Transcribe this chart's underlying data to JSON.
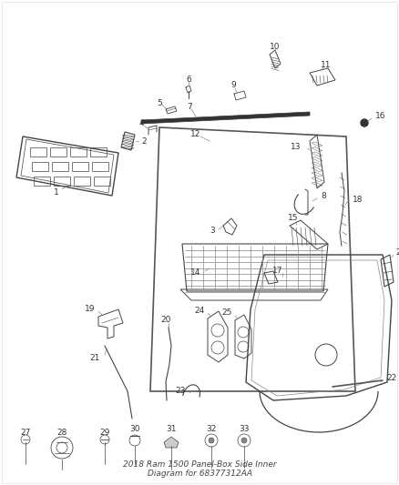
{
  "bg_color": "#ffffff",
  "line_color": "#444444",
  "leader_color": "#888888",
  "text_color": "#333333",
  "label_fontsize": 6.5,
  "fig_width": 4.38,
  "fig_height": 5.33,
  "dpi": 100,
  "title": "2018 Ram 1500 Panel-Box Side Inner\nDiagram for 68377312AA",
  "title_fontsize": 6.5
}
